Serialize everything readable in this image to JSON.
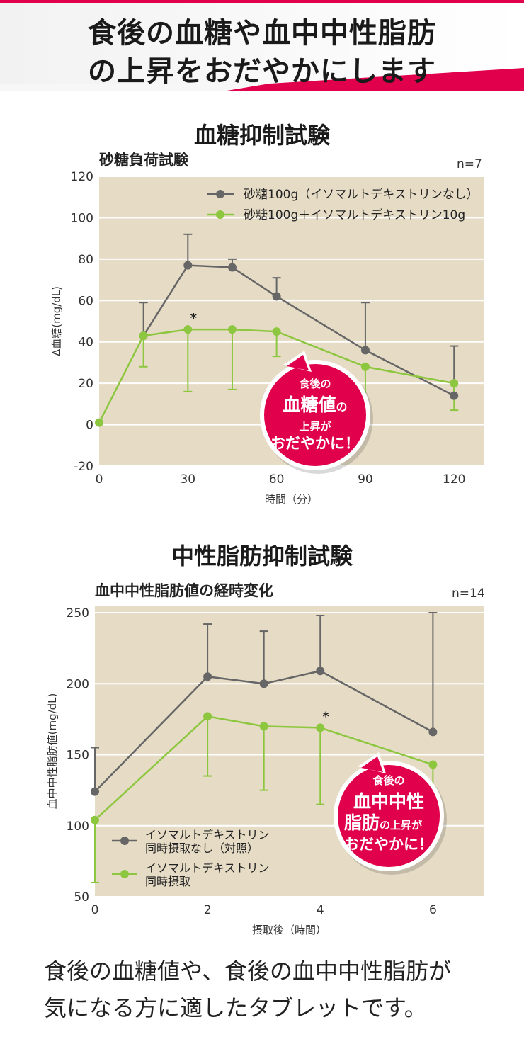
{
  "header": {
    "line1": "食後の血糖や血中中性脂肪",
    "line2": "の上昇をおだやかにします"
  },
  "section1": {
    "title": "血糖抑制試験",
    "subtitle": "砂糖負荷試験",
    "n_label": "n=7",
    "badge": {
      "line1": "食後の",
      "line2": "血糖値",
      "line2b": "の",
      "line3": "上昇が",
      "line4": "おだやかに！"
    }
  },
  "section2": {
    "title": "中性脂肪抑制試験",
    "subtitle": "血中中性脂肪値の経時変化",
    "n_label": "n=14",
    "badge": {
      "line1": "食後の",
      "line2": "血中中性",
      "line3a": "脂肪",
      "line3b": "の上昇が",
      "line4": "おだやかに！"
    }
  },
  "footer": {
    "line1": "食後の血糖値や、食後の血中中性脂肪が",
    "line2": "気になる方に適したタブレットです。"
  },
  "colors": {
    "accent": "#e0004b",
    "gray_series": "#666666",
    "green_series": "#8dc63f",
    "plot_bg": "#e6dcc6"
  },
  "chart_data": [
    {
      "type": "line",
      "xlabel": "時間（分）",
      "ylabel": "Δ血糖(mg/dL)",
      "xlim": [
        0,
        130
      ],
      "ylim": [
        -20,
        120
      ],
      "xticks": [
        0,
        30,
        60,
        90,
        120
      ],
      "yticks": [
        -20,
        0,
        20,
        40,
        60,
        80,
        100,
        120
      ],
      "grid": true,
      "legend_position": "top-right",
      "series": [
        {
          "name": "砂糖100g（イソマルトデキストリンなし）",
          "color": "#666666",
          "x": [
            15,
            30,
            45,
            60,
            90,
            120
          ],
          "y": [
            43,
            77,
            76,
            62,
            36,
            14
          ],
          "err_upper": [
            59,
            92,
            80,
            71,
            59,
            38
          ]
        },
        {
          "name": "砂糖100g＋イソマルトデキストリン10g",
          "color": "#8dc63f",
          "x": [
            0,
            15,
            30,
            45,
            60,
            90,
            120
          ],
          "y": [
            1,
            43,
            46,
            46,
            45,
            28,
            20
          ],
          "err_lower": [
            null,
            28,
            16,
            17,
            33,
            8,
            7
          ]
        }
      ],
      "annotations": [
        {
          "text": "*",
          "x": 30,
          "y": 46
        }
      ]
    },
    {
      "type": "line",
      "xlabel": "摂取後（時間）",
      "ylabel": "血中中性脂肪値(mg/dL)",
      "xlim": [
        0,
        6.9
      ],
      "ylim": [
        50,
        255
      ],
      "xticks": [
        0,
        2,
        4,
        6
      ],
      "yticks": [
        50,
        100,
        150,
        200,
        250
      ],
      "grid": true,
      "legend_position": "bottom-left",
      "series": [
        {
          "name": "イソマルトデキストリン同時摂取なし（対照）",
          "legend_lines": [
            "イソマルトデキストリン",
            "同時摂取なし（対照）"
          ],
          "color": "#666666",
          "x": [
            0,
            2,
            3,
            4,
            6
          ],
          "y": [
            124,
            205,
            200,
            209,
            166
          ],
          "err_upper": [
            155,
            242,
            237,
            248,
            250
          ]
        },
        {
          "name": "イソマルトデキストリン同時摂取",
          "legend_lines": [
            "イソマルトデキストリン",
            "同時摂取"
          ],
          "color": "#8dc63f",
          "x": [
            0,
            2,
            3,
            4,
            6
          ],
          "y": [
            104,
            177,
            170,
            169,
            143
          ],
          "err_lower": [
            60,
            135,
            125,
            115,
            88
          ]
        }
      ],
      "annotations": [
        {
          "text": "*",
          "x": 4,
          "y": 169
        }
      ]
    }
  ]
}
